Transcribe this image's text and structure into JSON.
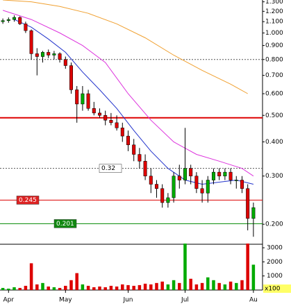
{
  "chart_data": {
    "type": "candlestick",
    "log_y": true,
    "open": [
      1.1,
      1.11,
      1.12,
      1.14,
      1.08,
      1.02,
      0.84,
      0.82,
      0.85,
      0.83,
      0.84,
      0.8,
      0.76,
      0.62,
      0.55,
      0.6,
      0.53,
      0.51,
      0.5,
      0.48,
      0.47,
      0.45,
      0.42,
      0.39,
      0.36,
      0.34,
      0.3,
      0.28,
      0.27,
      0.24,
      0.25,
      0.3,
      0.29,
      0.32,
      0.3,
      0.27,
      0.26,
      0.29,
      0.31,
      0.3,
      0.31,
      0.29,
      0.29,
      0.27,
      0.21
    ],
    "high": [
      1.13,
      1.14,
      1.16,
      1.15,
      1.1,
      1.03,
      0.88,
      0.86,
      0.87,
      0.86,
      0.85,
      0.82,
      0.78,
      0.64,
      0.64,
      0.62,
      0.56,
      0.53,
      0.52,
      0.51,
      0.5,
      0.47,
      0.44,
      0.41,
      0.38,
      0.36,
      0.32,
      0.29,
      0.28,
      0.26,
      0.31,
      0.33,
      0.45,
      0.33,
      0.31,
      0.29,
      0.3,
      0.32,
      0.32,
      0.32,
      0.32,
      0.3,
      0.3,
      0.28,
      0.24
    ],
    "low": [
      1.08,
      1.09,
      1.1,
      1.07,
      1.0,
      0.8,
      0.7,
      0.78,
      0.81,
      0.8,
      0.78,
      0.74,
      0.6,
      0.47,
      0.52,
      0.52,
      0.5,
      0.49,
      0.46,
      0.46,
      0.44,
      0.4,
      0.37,
      0.34,
      0.32,
      0.29,
      0.26,
      0.25,
      0.23,
      0.23,
      0.24,
      0.27,
      0.28,
      0.28,
      0.26,
      0.24,
      0.24,
      0.28,
      0.29,
      0.29,
      0.28,
      0.27,
      0.26,
      0.19,
      0.18
    ],
    "close": [
      1.11,
      1.12,
      1.14,
      1.08,
      1.02,
      0.84,
      0.82,
      0.85,
      0.83,
      0.84,
      0.8,
      0.76,
      0.62,
      0.55,
      0.6,
      0.53,
      0.51,
      0.5,
      0.48,
      0.47,
      0.45,
      0.42,
      0.39,
      0.36,
      0.34,
      0.3,
      0.28,
      0.27,
      0.24,
      0.25,
      0.3,
      0.29,
      0.32,
      0.3,
      0.27,
      0.26,
      0.29,
      0.31,
      0.3,
      0.31,
      0.29,
      0.29,
      0.27,
      0.21,
      0.23
    ],
    "up_color": "#00aa00",
    "down_color": "#dd0000",
    "xlim": [
      -0.5,
      45.6
    ],
    "ylim": [
      0.171,
      1.32
    ],
    "xticks": [
      {
        "value": 1,
        "label": "Apr"
      },
      {
        "value": 11,
        "label": "May"
      },
      {
        "value": 22,
        "label": "Jun"
      },
      {
        "value": 32,
        "label": "Jul"
      },
      {
        "value": 44,
        "label": "Au"
      }
    ],
    "yticks": [
      {
        "value": 1.3,
        "label": "1.300"
      },
      {
        "value": 1.2,
        "label": "1.200"
      },
      {
        "value": 1.1,
        "label": "1.100"
      },
      {
        "value": 1,
        "label": "1.000"
      },
      {
        "value": 0.9,
        "label": "0.900"
      },
      {
        "value": 0.8,
        "label": "0.800"
      },
      {
        "value": 0.7,
        "label": "0.700"
      },
      {
        "value": 0.6,
        "label": "0.600"
      },
      {
        "value": 0.5,
        "label": "0.500"
      },
      {
        "value": 0.4,
        "label": "0.400"
      },
      {
        "value": 0.3,
        "label": "0.300"
      },
      {
        "value": 0.2,
        "label": "0.200"
      }
    ],
    "series": [
      {
        "color": "#2233cc",
        "x": [
          2,
          5,
          8,
          11,
          14,
          17,
          20,
          23,
          26,
          29,
          32,
          35,
          38,
          41,
          44
        ],
        "values": [
          1.12,
          1.05,
          0.95,
          0.85,
          0.72,
          0.62,
          0.53,
          0.44,
          0.37,
          0.32,
          0.29,
          0.28,
          0.285,
          0.29,
          0.28
        ]
      },
      {
        "color": "#dd33dd",
        "x": [
          0,
          5,
          10,
          14,
          18,
          22,
          26,
          30,
          34,
          38,
          42,
          44
        ],
        "values": [
          1.21,
          1.12,
          1.0,
          0.9,
          0.78,
          0.6,
          0.48,
          0.4,
          0.36,
          0.34,
          0.32,
          0.3
        ]
      },
      {
        "color": "#f0a030",
        "x": [
          0,
          5,
          10,
          15,
          20,
          25,
          30,
          35,
          40,
          43
        ],
        "values": [
          1.32,
          1.3,
          1.25,
          1.18,
          1.08,
          0.96,
          0.83,
          0.73,
          0.65,
          0.6
        ]
      }
    ],
    "levels": [
      {
        "value": 0.8,
        "color": "#555555",
        "dashed": true,
        "labeled": false
      },
      {
        "value": 0.49,
        "color": "#dd0000",
        "dashed": false,
        "labeled": false
      },
      {
        "value": 0.32,
        "color": "#555555",
        "dashed": true,
        "labeled": true,
        "label_color": "#ffffff",
        "text_color": "#000000"
      },
      {
        "value": 0.245,
        "color": "#dd0000",
        "dashed": false,
        "labeled": true,
        "label_color": "#dd2222",
        "text_color": "#ffffff"
      },
      {
        "value": 0.201,
        "color": "#008800",
        "dashed": false,
        "labeled": true,
        "label_color": "#118811",
        "text_color": "#ffffff"
      }
    ],
    "volume": {
      "values": [
        150,
        100,
        200,
        150,
        300,
        1900,
        400,
        500,
        250,
        200,
        150,
        300,
        700,
        1200,
        400,
        300,
        200,
        250,
        200,
        300,
        250,
        400,
        350,
        300,
        350,
        450,
        400,
        500,
        600,
        400,
        700,
        500,
        3300,
        800,
        400,
        500,
        900,
        700,
        500,
        400,
        600,
        500,
        700,
        3300,
        1800
      ],
      "ylim": [
        0,
        3250
      ],
      "yticks": [
        1000,
        2000,
        3000
      ],
      "unit_label": "x100"
    }
  }
}
